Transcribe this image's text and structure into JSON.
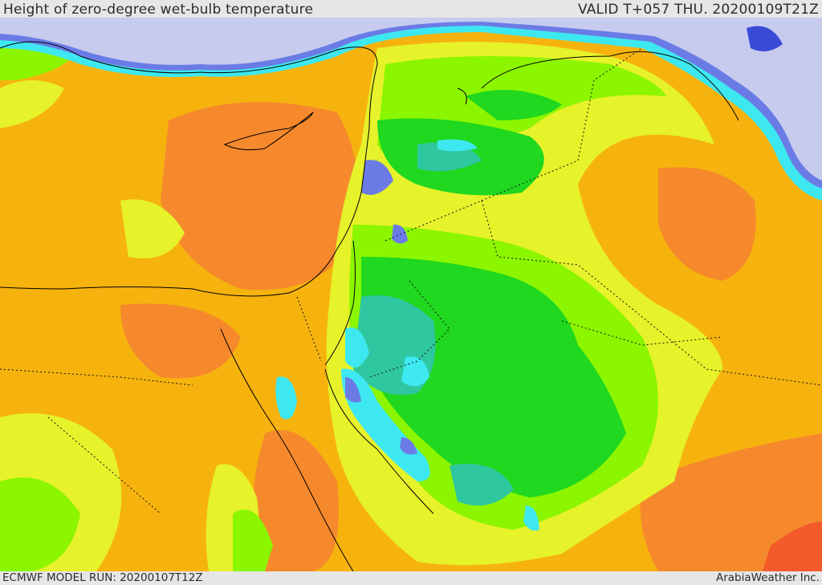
{
  "header": {
    "title": "Height of zero-degree wet-bulb temperature",
    "valid": "VALID T+057 THU. 20200109T21Z"
  },
  "footer": {
    "model_run": "ECMWF MODEL RUN: 20200107T12Z",
    "credit": "ArabiaWeather Inc."
  },
  "palette": {
    "sea_cold": "#c7cbee",
    "blue": "#6b7be6",
    "cyan": "#3ee8f0",
    "teal": "#2fc7a0",
    "green": "#1fd81f",
    "light_green": "#8cf500",
    "yellow": "#e6f22a",
    "orange": "#f6b30e",
    "dark_orange": "#f5892c",
    "red": "#f45a2a"
  }
}
